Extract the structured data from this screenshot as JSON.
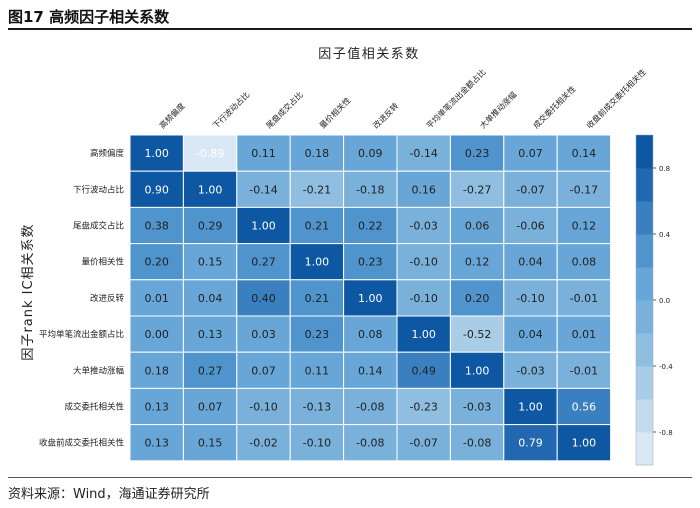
{
  "figure": {
    "title": "图17 高频因子相关系数",
    "source": "资料来源：Wind，海通证券研究所"
  },
  "chart_data": {
    "type": "heatmap",
    "title": "因子值相关系数",
    "ylabel": "因子rank IC相关系数",
    "xlabel": "",
    "labels": [
      "高频偏度",
      "下行波动占比",
      "尾盘成交占比",
      "量价相关性",
      "改进反转",
      "平均单笔流出金额占比",
      "大单推动涨幅",
      "成交委托相关性",
      "收盘前成交委托相关性"
    ],
    "matrix": [
      [
        1.0,
        -0.89,
        0.11,
        0.18,
        0.09,
        -0.14,
        0.23,
        0.07,
        0.14
      ],
      [
        0.9,
        1.0,
        -0.14,
        -0.21,
        -0.18,
        0.16,
        -0.27,
        -0.07,
        -0.17
      ],
      [
        0.38,
        0.29,
        1.0,
        0.21,
        0.22,
        -0.03,
        0.06,
        -0.06,
        0.12
      ],
      [
        0.2,
        0.15,
        0.27,
        1.0,
        0.23,
        -0.1,
        0.12,
        0.04,
        0.08
      ],
      [
        0.01,
        0.04,
        0.4,
        0.21,
        1.0,
        -0.1,
        0.2,
        -0.1,
        -0.01
      ],
      [
        0.0,
        0.13,
        0.03,
        0.23,
        0.08,
        1.0,
        -0.52,
        0.04,
        0.01
      ],
      [
        0.18,
        0.27,
        0.07,
        0.11,
        0.14,
        0.49,
        1.0,
        -0.03,
        -0.01
      ],
      [
        0.13,
        0.07,
        -0.1,
        -0.13,
        -0.08,
        -0.23,
        -0.03,
        1.0,
        0.56
      ],
      [
        0.13,
        0.15,
        -0.02,
        -0.1,
        -0.08,
        -0.07,
        -0.08,
        0.79,
        1.0
      ]
    ],
    "colorbar": {
      "ticks": [
        0.8,
        0.4,
        0.0,
        -0.4,
        -0.8
      ],
      "tick_labels": [
        "0.8",
        "0.4",
        "0.0",
        "-0.4",
        "-0.8"
      ],
      "range": [
        -1.0,
        1.0
      ]
    },
    "colors": {
      "scale": [
        "#dae8f5",
        "#c4daee",
        "#a9cde6",
        "#8fbee0",
        "#79b1db",
        "#67a6d7",
        "#4f94cc",
        "#3a80c0",
        "#2268b0",
        "#0d57a3"
      ],
      "text_light": "#ffffff",
      "text_dark": "#222222",
      "grid": "#ffffff"
    }
  }
}
